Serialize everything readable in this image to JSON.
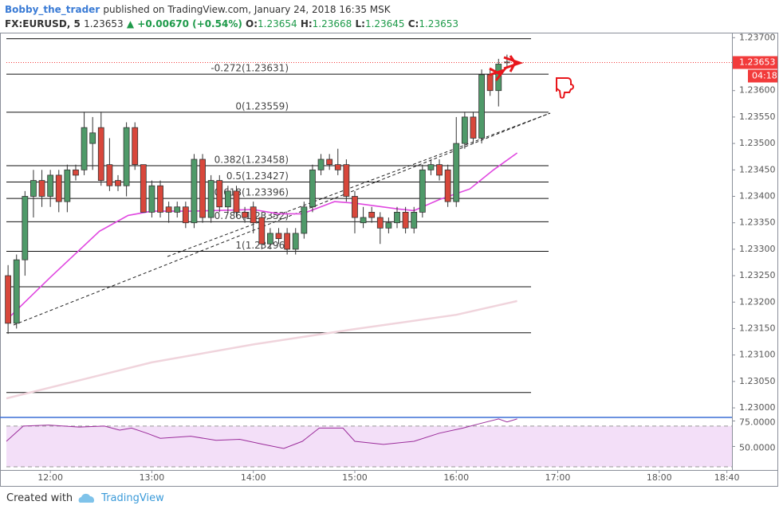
{
  "header": {
    "author": "Bobby_the_trader",
    "published": "published on TradingView.com, January 24, 2018 16:35 MSK",
    "symbol": "FX:EURUSD, 5",
    "last": "1.23653",
    "change": "▲ +0.00670 (+0.54%)",
    "o_label": "O:",
    "open": "1.23654",
    "h_label": "H:",
    "high": "1.23668",
    "l_label": "L:",
    "low": "1.23645",
    "c_label": "C:",
    "close": "1.23653"
  },
  "chart_data": {
    "type": "candlestick",
    "x": [
      695,
      700,
      705,
      710,
      715,
      720,
      725,
      730,
      735,
      740,
      745,
      750,
      755,
      760,
      765,
      770,
      775,
      780,
      785,
      790,
      795,
      800,
      805,
      810,
      815,
      820,
      825,
      830,
      835,
      840,
      845,
      850,
      855,
      860,
      865,
      870,
      875,
      880,
      885,
      890,
      895,
      900,
      905,
      910,
      915,
      920,
      925,
      930,
      935,
      940,
      945,
      950,
      955,
      960,
      965,
      970,
      975,
      980,
      985,
      990
    ],
    "open": [
      1.2325,
      1.2316,
      1.2328,
      1.234,
      1.2343,
      1.234,
      1.2344,
      1.2339,
      1.2345,
      1.2345,
      1.235,
      1.2353,
      1.2346,
      1.2343,
      1.2342,
      1.2353,
      1.2346,
      1.2337,
      1.2342,
      1.2338,
      1.2337,
      1.2338,
      1.2335,
      1.2347,
      1.2336,
      1.2343,
      1.2338,
      1.2341,
      1.2337,
      1.2338,
      1.2336,
      1.2331,
      1.2333,
      1.2333,
      1.233,
      1.2333,
      1.2338,
      1.2345,
      1.2347,
      1.2346,
      1.2346,
      1.234,
      1.2335,
      1.2337,
      1.2336,
      1.2334,
      1.2335,
      1.2337,
      1.2334,
      1.2337,
      1.2345,
      1.2346,
      1.2345,
      1.2339,
      1.235,
      1.2355,
      1.2351,
      1.2363,
      1.236,
      1.23654
    ],
    "high": [
      1.2327,
      1.2329,
      1.2341,
      1.2345,
      1.2345,
      1.2345,
      1.2345,
      1.2346,
      1.2346,
      1.2356,
      1.2355,
      1.2356,
      1.2351,
      1.2344,
      1.2354,
      1.2354,
      1.2346,
      1.2343,
      1.2343,
      1.2339,
      1.2339,
      1.2339,
      1.2348,
      1.2348,
      1.2344,
      1.2344,
      1.2342,
      1.2342,
      1.2338,
      1.2339,
      1.2337,
      1.2334,
      1.2334,
      1.2334,
      1.2334,
      1.2339,
      1.2346,
      1.2348,
      1.2348,
      1.2349,
      1.2347,
      1.2341,
      1.2338,
      1.2338,
      1.2337,
      1.2336,
      1.2338,
      1.2338,
      1.2338,
      1.2346,
      1.2347,
      1.2347,
      1.2346,
      1.2355,
      1.2356,
      1.2356,
      1.2364,
      1.2364,
      1.2366,
      1.23668
    ],
    "low": [
      1.2314,
      1.2315,
      1.2325,
      1.2336,
      1.2338,
      1.2338,
      1.2337,
      1.2337,
      1.2343,
      1.2344,
      1.2345,
      1.2342,
      1.2341,
      1.2341,
      1.234,
      1.2345,
      1.2337,
      1.2336,
      1.2336,
      1.2335,
      1.2336,
      1.2334,
      1.2334,
      1.2335,
      1.2335,
      1.2337,
      1.2337,
      1.2336,
      1.2335,
      1.2333,
      1.233,
      1.233,
      1.2331,
      1.2329,
      1.2329,
      1.2332,
      1.2337,
      1.2344,
      1.2345,
      1.2344,
      1.2339,
      1.2333,
      1.2334,
      1.2335,
      1.2331,
      1.2333,
      1.2334,
      1.2333,
      1.2333,
      1.2336,
      1.2344,
      1.2343,
      1.2338,
      1.2338,
      1.2349,
      1.235,
      1.235,
      1.2359,
      1.2357,
      1.23645
    ],
    "close": [
      1.2316,
      1.2328,
      1.234,
      1.2343,
      1.234,
      1.2344,
      1.2339,
      1.2345,
      1.2344,
      1.2353,
      1.2352,
      1.2343,
      1.2342,
      1.2342,
      1.2353,
      1.2346,
      1.2337,
      1.2342,
      1.2337,
      1.2337,
      1.2338,
      1.2335,
      1.2347,
      1.2336,
      1.2343,
      1.2338,
      1.2341,
      1.2337,
      1.2336,
      1.2335,
      1.2331,
      1.2333,
      1.2332,
      1.233,
      1.2333,
      1.2338,
      1.2345,
      1.2347,
      1.2346,
      1.2345,
      1.234,
      1.2336,
      1.2336,
      1.2336,
      1.2334,
      1.2335,
      1.2337,
      1.2334,
      1.2337,
      1.2345,
      1.2346,
      1.2344,
      1.2339,
      1.235,
      1.2355,
      1.2351,
      1.2363,
      1.236,
      1.2365,
      1.23653
    ],
    "up_color": "#4f9a69",
    "down_color": "#d8473b",
    "xlim": [
      694,
      1123
    ],
    "xticks": [
      {
        "value": 720,
        "label": "12:00"
      },
      {
        "value": 780,
        "label": "13:00"
      },
      {
        "value": 840,
        "label": "14:00"
      },
      {
        "value": 900,
        "label": "15:00"
      },
      {
        "value": 960,
        "label": "16:00"
      },
      {
        "value": 1020,
        "label": "17:00"
      },
      {
        "value": 1080,
        "label": "18:00"
      },
      {
        "value": 1120,
        "label": "18:40"
      }
    ],
    "ylim": [
      1.22985,
      1.23708
    ],
    "yticks": [
      {
        "value": 1.23,
        "label": "1.23000"
      },
      {
        "value": 1.2305,
        "label": "1.23050"
      },
      {
        "value": 1.231,
        "label": "1.23100"
      },
      {
        "value": 1.2315,
        "label": "1.23150"
      },
      {
        "value": 1.232,
        "label": "1.23200"
      },
      {
        "value": 1.2325,
        "label": "1.23250"
      },
      {
        "value": 1.233,
        "label": "1.23300"
      },
      {
        "value": 1.2335,
        "label": "1.23350"
      },
      {
        "value": 1.234,
        "label": "1.23400"
      },
      {
        "value": 1.2345,
        "label": "1.23450"
      },
      {
        "value": 1.235,
        "label": "1.23500"
      },
      {
        "value": 1.2355,
        "label": "1.23550"
      },
      {
        "value": 1.236,
        "label": "1.23600"
      },
      {
        "value": 1.237,
        "label": "1.23700"
      }
    ],
    "last_price": 1.23653,
    "last_color": "#f23b3b",
    "countdown": "04:18",
    "fib_levels": [
      {
        "label": "-0.272(1.23631)",
        "value": 1.23631
      },
      {
        "label": "0(1.23559)",
        "value": 1.23559
      },
      {
        "label": "0.382(1.23458)",
        "value": 1.23458
      },
      {
        "label": "0.5(1.23427)",
        "value": 1.23427
      },
      {
        "label": "0.618(1.23396)",
        "value": 1.23396
      },
      {
        "label": "0.786(1.23352)",
        "value": 1.23352
      },
      {
        "label": "1(1.23296)",
        "value": 1.23296
      }
    ],
    "levels": [
      1.23698,
      1.23229,
      1.23142,
      1.23029
    ],
    "moving_averages": [
      {
        "color": "#e048e0",
        "x": [
          695,
          720,
          749,
          766,
          780,
          803,
          840,
          855,
          869,
          888,
          900,
          926,
          935,
          950,
          968,
          982,
          996
        ],
        "values": [
          1.23169,
          1.23247,
          1.23334,
          1.23364,
          1.23372,
          1.23372,
          1.23375,
          1.23367,
          1.23367,
          1.2339,
          1.23387,
          1.23376,
          1.23373,
          1.23394,
          1.23414,
          1.2345,
          1.23482
        ]
      },
      {
        "color": "#f0d4dc",
        "x": [
          694,
          780,
          840,
          900,
          960,
          996
        ],
        "values": [
          1.23018,
          1.23086,
          1.2312,
          1.23149,
          1.23176,
          1.23202
        ]
      }
    ]
  },
  "rsi": {
    "type": "line",
    "color": "#9b2d9b",
    "x": [
      694,
      704,
      719,
      737,
      752,
      761,
      768,
      777,
      785,
      803,
      818,
      832,
      846,
      858,
      869,
      879,
      893,
      900,
      917,
      935,
      950,
      964,
      973,
      985,
      990,
      996
    ],
    "values": [
      55,
      70,
      71,
      69,
      70,
      66,
      68,
      63,
      58,
      60,
      56,
      57,
      52,
      48,
      55,
      68,
      68,
      55,
      52,
      55,
      63,
      68,
      72,
      77,
      74,
      77
    ],
    "ylim": [
      26.9,
      77.7
    ],
    "yticks": [
      {
        "value": 75,
        "label": "75.0000"
      },
      {
        "value": 50,
        "label": "50.0000"
      }
    ],
    "band": [
      30,
      70
    ],
    "band_color": "#f3dff8"
  },
  "footer": {
    "created": "Created with",
    "brand": "TradingView"
  }
}
